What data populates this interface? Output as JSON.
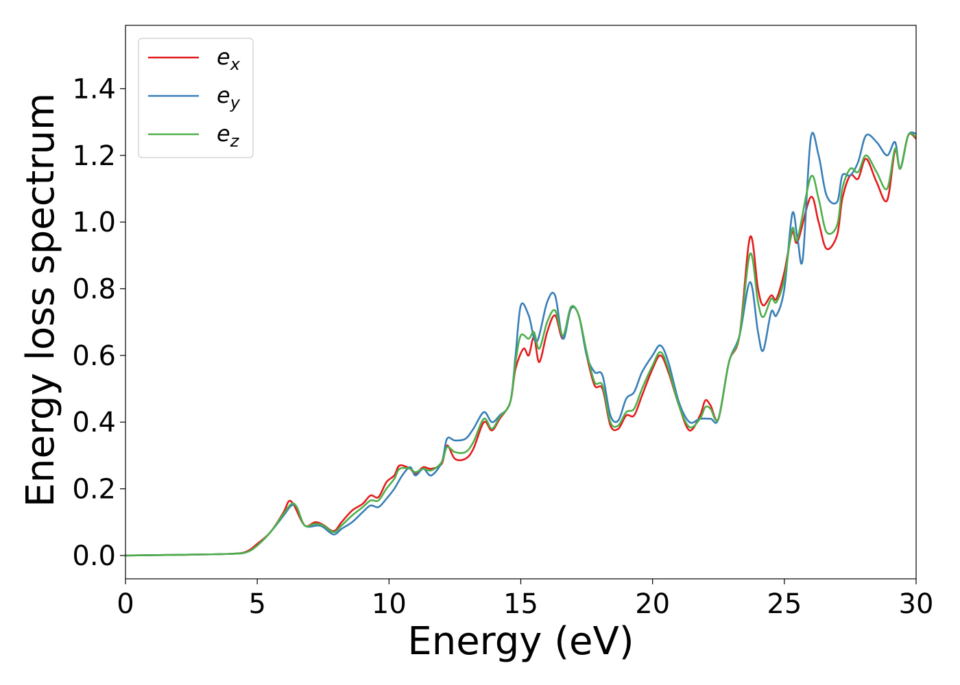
{
  "chart_data": {
    "type": "line",
    "xlabel": "Energy (eV)",
    "ylabel": "Energy loss spectrum",
    "xlim": [
      0,
      30
    ],
    "ylim": [
      -0.07,
      1.59
    ],
    "xticks": [
      0,
      5,
      10,
      15,
      20,
      25,
      30
    ],
    "xtick_labels": [
      "0",
      "5",
      "10",
      "15",
      "20",
      "25",
      "30"
    ],
    "yticks": [
      0.0,
      0.2,
      0.4,
      0.6,
      0.8,
      1.0,
      1.2,
      1.4
    ],
    "ytick_labels": [
      "0.0",
      "0.2",
      "0.4",
      "0.6",
      "0.8",
      "1.0",
      "1.2",
      "1.4"
    ],
    "grid": false,
    "legend_position": "top-left",
    "series": [
      {
        "name": "e",
        "subscript": "x",
        "color": "#e41a1c",
        "points": [
          [
            0,
            0
          ],
          [
            2,
            0.002
          ],
          [
            4,
            0.005
          ],
          [
            4.6,
            0.012
          ],
          [
            5,
            0.035
          ],
          [
            5.5,
            0.07
          ],
          [
            6,
            0.13
          ],
          [
            6.2,
            0.163
          ],
          [
            6.4,
            0.15
          ],
          [
            6.8,
            0.09
          ],
          [
            7.2,
            0.1
          ],
          [
            7.5,
            0.092
          ],
          [
            7.9,
            0.073
          ],
          [
            8.2,
            0.1
          ],
          [
            8.6,
            0.135
          ],
          [
            9,
            0.155
          ],
          [
            9.3,
            0.18
          ],
          [
            9.6,
            0.175
          ],
          [
            9.9,
            0.22
          ],
          [
            10.2,
            0.24
          ],
          [
            10.4,
            0.27
          ],
          [
            10.8,
            0.26
          ],
          [
            11,
            0.245
          ],
          [
            11.3,
            0.265
          ],
          [
            11.6,
            0.26
          ],
          [
            12,
            0.275
          ],
          [
            12.2,
            0.33
          ],
          [
            12.5,
            0.29
          ],
          [
            12.9,
            0.29
          ],
          [
            13.2,
            0.32
          ],
          [
            13.6,
            0.4
          ],
          [
            13.9,
            0.375
          ],
          [
            14.2,
            0.41
          ],
          [
            14.6,
            0.46
          ],
          [
            14.8,
            0.56
          ],
          [
            15.1,
            0.62
          ],
          [
            15.3,
            0.6
          ],
          [
            15.5,
            0.655
          ],
          [
            15.7,
            0.58
          ],
          [
            16,
            0.67
          ],
          [
            16.3,
            0.72
          ],
          [
            16.6,
            0.65
          ],
          [
            16.9,
            0.74
          ],
          [
            17.2,
            0.72
          ],
          [
            17.5,
            0.6
          ],
          [
            17.8,
            0.51
          ],
          [
            18.1,
            0.5
          ],
          [
            18.4,
            0.39
          ],
          [
            18.7,
            0.38
          ],
          [
            19,
            0.42
          ],
          [
            19.3,
            0.42
          ],
          [
            19.6,
            0.48
          ],
          [
            20,
            0.56
          ],
          [
            20.3,
            0.6
          ],
          [
            20.6,
            0.55
          ],
          [
            21,
            0.45
          ],
          [
            21.4,
            0.375
          ],
          [
            21.8,
            0.42
          ],
          [
            22,
            0.465
          ],
          [
            22.2,
            0.45
          ],
          [
            22.5,
            0.41
          ],
          [
            22.9,
            0.58
          ],
          [
            23.3,
            0.66
          ],
          [
            23.7,
            0.955
          ],
          [
            24,
            0.8
          ],
          [
            24.2,
            0.75
          ],
          [
            24.5,
            0.78
          ],
          [
            24.7,
            0.77
          ],
          [
            25,
            0.85
          ],
          [
            25.3,
            0.97
          ],
          [
            25.5,
            0.94
          ],
          [
            26,
            1.075
          ],
          [
            26.3,
            1.0
          ],
          [
            26.6,
            0.92
          ],
          [
            27,
            0.96
          ],
          [
            27.2,
            1.07
          ],
          [
            27.5,
            1.14
          ],
          [
            27.8,
            1.13
          ],
          [
            28.1,
            1.19
          ],
          [
            28.5,
            1.12
          ],
          [
            28.9,
            1.065
          ],
          [
            29.2,
            1.215
          ],
          [
            29.4,
            1.16
          ],
          [
            29.7,
            1.26
          ],
          [
            30,
            1.25
          ]
        ]
      },
      {
        "name": "e",
        "subscript": "y",
        "color": "#377eb8",
        "points": [
          [
            0,
            0
          ],
          [
            2,
            0.002
          ],
          [
            4,
            0.005
          ],
          [
            4.6,
            0.01
          ],
          [
            5,
            0.03
          ],
          [
            5.5,
            0.07
          ],
          [
            6,
            0.12
          ],
          [
            6.3,
            0.15
          ],
          [
            6.5,
            0.145
          ],
          [
            6.8,
            0.09
          ],
          [
            7.3,
            0.09
          ],
          [
            7.5,
            0.085
          ],
          [
            7.9,
            0.063
          ],
          [
            8.2,
            0.08
          ],
          [
            8.6,
            0.1
          ],
          [
            9,
            0.13
          ],
          [
            9.3,
            0.15
          ],
          [
            9.6,
            0.145
          ],
          [
            9.9,
            0.17
          ],
          [
            10.2,
            0.2
          ],
          [
            10.5,
            0.24
          ],
          [
            10.8,
            0.265
          ],
          [
            11,
            0.24
          ],
          [
            11.3,
            0.26
          ],
          [
            11.6,
            0.24
          ],
          [
            12,
            0.28
          ],
          [
            12.2,
            0.35
          ],
          [
            12.5,
            0.345
          ],
          [
            12.9,
            0.35
          ],
          [
            13.2,
            0.38
          ],
          [
            13.6,
            0.43
          ],
          [
            13.9,
            0.4
          ],
          [
            14.2,
            0.42
          ],
          [
            14.6,
            0.46
          ],
          [
            14.8,
            0.6
          ],
          [
            15,
            0.75
          ],
          [
            15.3,
            0.72
          ],
          [
            15.6,
            0.64
          ],
          [
            16,
            0.76
          ],
          [
            16.3,
            0.78
          ],
          [
            16.6,
            0.65
          ],
          [
            16.9,
            0.74
          ],
          [
            17.2,
            0.72
          ],
          [
            17.5,
            0.6
          ],
          [
            17.8,
            0.55
          ],
          [
            18.1,
            0.54
          ],
          [
            18.4,
            0.42
          ],
          [
            18.7,
            0.405
          ],
          [
            19,
            0.47
          ],
          [
            19.3,
            0.49
          ],
          [
            19.6,
            0.55
          ],
          [
            20,
            0.6
          ],
          [
            20.3,
            0.63
          ],
          [
            20.6,
            0.58
          ],
          [
            21,
            0.46
          ],
          [
            21.4,
            0.4
          ],
          [
            21.8,
            0.41
          ],
          [
            22.2,
            0.41
          ],
          [
            22.5,
            0.41
          ],
          [
            22.9,
            0.58
          ],
          [
            23.3,
            0.66
          ],
          [
            23.7,
            0.82
          ],
          [
            24,
            0.67
          ],
          [
            24.2,
            0.615
          ],
          [
            24.5,
            0.73
          ],
          [
            24.7,
            0.72
          ],
          [
            25,
            0.8
          ],
          [
            25.3,
            1.025
          ],
          [
            25.5,
            0.95
          ],
          [
            25.7,
            0.89
          ],
          [
            26,
            1.25
          ],
          [
            26.3,
            1.2
          ],
          [
            26.6,
            1.08
          ],
          [
            27,
            1.06
          ],
          [
            27.2,
            1.14
          ],
          [
            27.5,
            1.14
          ],
          [
            27.8,
            1.18
          ],
          [
            28.1,
            1.26
          ],
          [
            28.5,
            1.24
          ],
          [
            28.9,
            1.2
          ],
          [
            29.2,
            1.24
          ],
          [
            29.4,
            1.16
          ],
          [
            29.7,
            1.26
          ],
          [
            30,
            1.265
          ]
        ]
      },
      {
        "name": "e",
        "subscript": "z",
        "color": "#4daf4a",
        "points": [
          [
            0,
            0
          ],
          [
            2,
            0.002
          ],
          [
            4,
            0.005
          ],
          [
            4.6,
            0.01
          ],
          [
            5,
            0.03
          ],
          [
            5.5,
            0.07
          ],
          [
            6,
            0.125
          ],
          [
            6.3,
            0.155
          ],
          [
            6.5,
            0.145
          ],
          [
            6.8,
            0.09
          ],
          [
            7.2,
            0.095
          ],
          [
            7.5,
            0.09
          ],
          [
            7.9,
            0.07
          ],
          [
            8.2,
            0.09
          ],
          [
            8.6,
            0.12
          ],
          [
            9,
            0.145
          ],
          [
            9.3,
            0.165
          ],
          [
            9.6,
            0.165
          ],
          [
            9.9,
            0.2
          ],
          [
            10.2,
            0.23
          ],
          [
            10.4,
            0.26
          ],
          [
            10.8,
            0.26
          ],
          [
            11,
            0.25
          ],
          [
            11.3,
            0.26
          ],
          [
            11.6,
            0.255
          ],
          [
            12,
            0.28
          ],
          [
            12.2,
            0.325
          ],
          [
            12.5,
            0.31
          ],
          [
            12.9,
            0.31
          ],
          [
            13.2,
            0.34
          ],
          [
            13.6,
            0.41
          ],
          [
            13.9,
            0.38
          ],
          [
            14.2,
            0.415
          ],
          [
            14.6,
            0.46
          ],
          [
            14.8,
            0.58
          ],
          [
            15,
            0.66
          ],
          [
            15.3,
            0.65
          ],
          [
            15.5,
            0.67
          ],
          [
            15.7,
            0.62
          ],
          [
            16,
            0.7
          ],
          [
            16.3,
            0.735
          ],
          [
            16.6,
            0.66
          ],
          [
            16.9,
            0.745
          ],
          [
            17.2,
            0.72
          ],
          [
            17.5,
            0.61
          ],
          [
            17.8,
            0.52
          ],
          [
            18.1,
            0.51
          ],
          [
            18.4,
            0.4
          ],
          [
            18.7,
            0.39
          ],
          [
            19,
            0.43
          ],
          [
            19.3,
            0.44
          ],
          [
            19.6,
            0.5
          ],
          [
            20,
            0.57
          ],
          [
            20.3,
            0.61
          ],
          [
            20.6,
            0.56
          ],
          [
            21,
            0.45
          ],
          [
            21.4,
            0.385
          ],
          [
            21.8,
            0.41
          ],
          [
            22,
            0.445
          ],
          [
            22.2,
            0.44
          ],
          [
            22.5,
            0.41
          ],
          [
            22.9,
            0.58
          ],
          [
            23.3,
            0.66
          ],
          [
            23.7,
            0.905
          ],
          [
            24,
            0.76
          ],
          [
            24.2,
            0.715
          ],
          [
            24.5,
            0.77
          ],
          [
            24.7,
            0.76
          ],
          [
            25,
            0.83
          ],
          [
            25.3,
            0.98
          ],
          [
            25.5,
            0.95
          ],
          [
            26,
            1.135
          ],
          [
            26.3,
            1.07
          ],
          [
            26.6,
            0.97
          ],
          [
            27,
            0.99
          ],
          [
            27.2,
            1.1
          ],
          [
            27.5,
            1.16
          ],
          [
            27.8,
            1.15
          ],
          [
            28.1,
            1.2
          ],
          [
            28.5,
            1.15
          ],
          [
            28.9,
            1.1
          ],
          [
            29.2,
            1.22
          ],
          [
            29.4,
            1.16
          ],
          [
            29.7,
            1.26
          ],
          [
            30,
            1.255
          ]
        ]
      }
    ]
  }
}
